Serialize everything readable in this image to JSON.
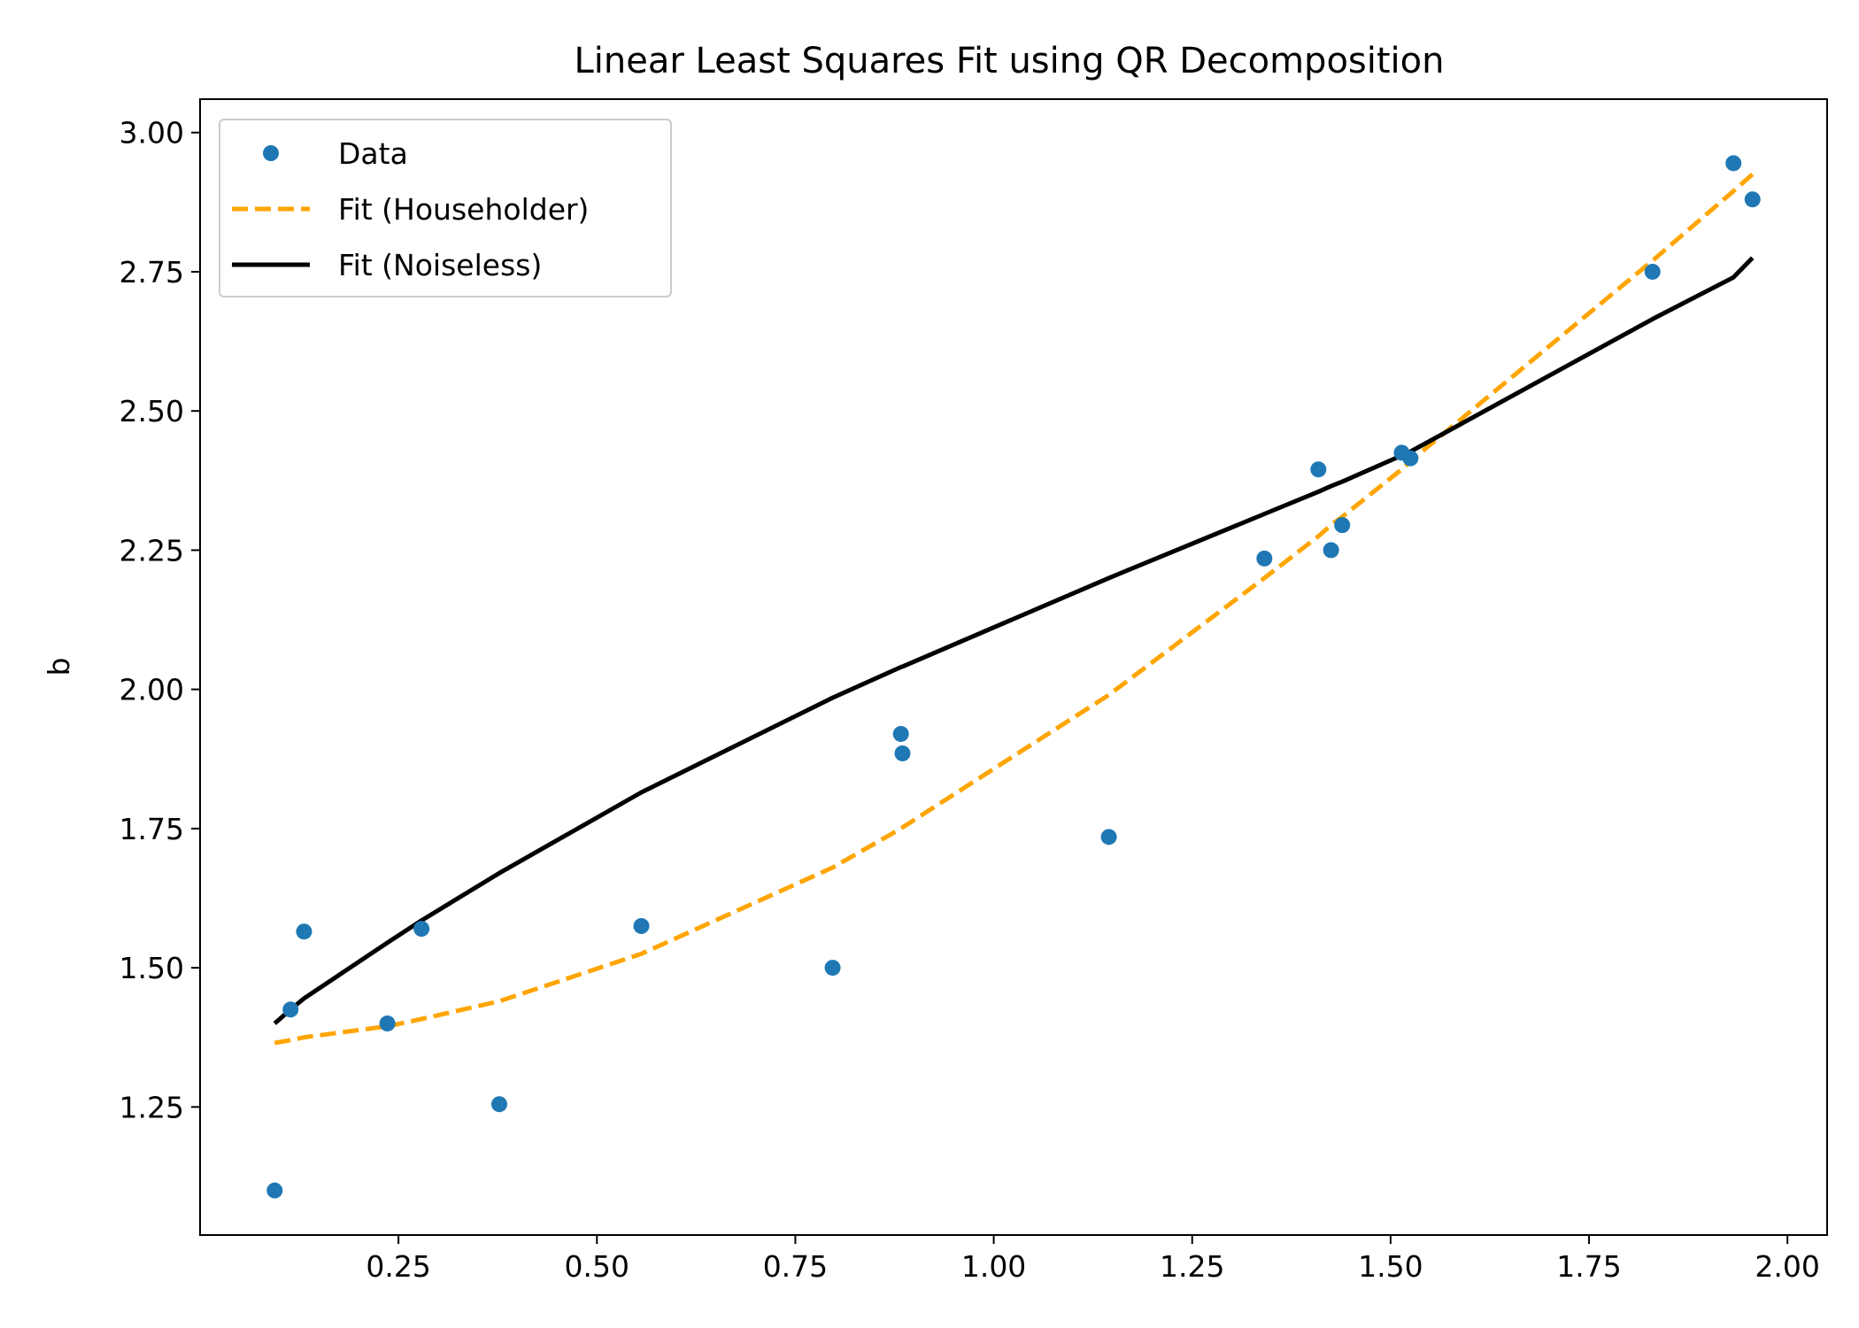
{
  "chart_data": {
    "type": "scatter",
    "title": "Linear Least Squares Fit using QR Decomposition",
    "xlabel": "",
    "ylabel": "b",
    "xlim": [
      -0.0,
      2.05
    ],
    "ylim": [
      1.02,
      3.06
    ],
    "x_ticks": [
      0.25,
      0.5,
      0.75,
      1.0,
      1.25,
      1.5,
      1.75,
      2.0
    ],
    "x_tick_labels": [
      "0.25",
      "0.50",
      "0.75",
      "1.00",
      "1.25",
      "1.50",
      "1.75",
      "2.00"
    ],
    "y_ticks": [
      1.25,
      1.5,
      1.75,
      2.0,
      2.25,
      2.5,
      2.75,
      3.0
    ],
    "y_tick_labels": [
      "1.25",
      "1.50",
      "1.75",
      "2.00",
      "2.25",
      "2.50",
      "2.75",
      "3.00"
    ],
    "grid": false,
    "legend_position": "top-left",
    "series": [
      {
        "name": "Data",
        "kind": "scatter",
        "color": "#1f77b4",
        "points": [
          [
            0.094,
            1.1
          ],
          [
            0.114,
            1.425
          ],
          [
            0.131,
            1.565
          ],
          [
            0.236,
            1.4
          ],
          [
            0.279,
            1.57
          ],
          [
            0.377,
            1.255
          ],
          [
            0.556,
            1.575
          ],
          [
            0.797,
            1.5
          ],
          [
            0.883,
            1.92
          ],
          [
            0.885,
            1.885
          ],
          [
            1.145,
            1.735
          ],
          [
            1.341,
            2.235
          ],
          [
            1.409,
            2.395
          ],
          [
            1.425,
            2.25
          ],
          [
            1.439,
            2.295
          ],
          [
            1.514,
            2.425
          ],
          [
            1.525,
            2.415
          ],
          [
            1.83,
            2.75
          ],
          [
            1.932,
            2.945
          ],
          [
            1.956,
            2.88
          ]
        ]
      },
      {
        "name": "Fit (Householder)",
        "kind": "line",
        "style": "dashed",
        "color": "#ffa500",
        "points": [
          [
            0.094,
            1.365
          ],
          [
            0.114,
            1.37
          ],
          [
            0.131,
            1.375
          ],
          [
            0.236,
            1.395
          ],
          [
            0.279,
            1.408
          ],
          [
            0.377,
            1.44
          ],
          [
            0.556,
            1.525
          ],
          [
            0.797,
            1.68
          ],
          [
            0.883,
            1.75
          ],
          [
            0.885,
            1.752
          ],
          [
            1.145,
            1.99
          ],
          [
            1.341,
            2.2
          ],
          [
            1.409,
            2.275
          ],
          [
            1.425,
            2.295
          ],
          [
            1.439,
            2.31
          ],
          [
            1.514,
            2.395
          ],
          [
            1.525,
            2.41
          ],
          [
            1.83,
            2.77
          ],
          [
            1.932,
            2.895
          ],
          [
            1.956,
            2.925
          ]
        ]
      },
      {
        "name": "Fit (Noiseless)",
        "kind": "line",
        "style": "solid",
        "color": "#000000",
        "points": [
          [
            0.094,
            1.4
          ],
          [
            0.114,
            1.425
          ],
          [
            0.131,
            1.445
          ],
          [
            0.236,
            1.545
          ],
          [
            0.279,
            1.585
          ],
          [
            0.377,
            1.67
          ],
          [
            0.556,
            1.815
          ],
          [
            0.797,
            1.985
          ],
          [
            0.883,
            2.04
          ],
          [
            0.885,
            2.041
          ],
          [
            1.145,
            2.2
          ],
          [
            1.341,
            2.315
          ],
          [
            1.409,
            2.355
          ],
          [
            1.425,
            2.365
          ],
          [
            1.439,
            2.373
          ],
          [
            1.514,
            2.42
          ],
          [
            1.525,
            2.427
          ],
          [
            1.83,
            2.665
          ],
          [
            1.932,
            2.74
          ],
          [
            1.956,
            2.775
          ]
        ]
      }
    ]
  }
}
